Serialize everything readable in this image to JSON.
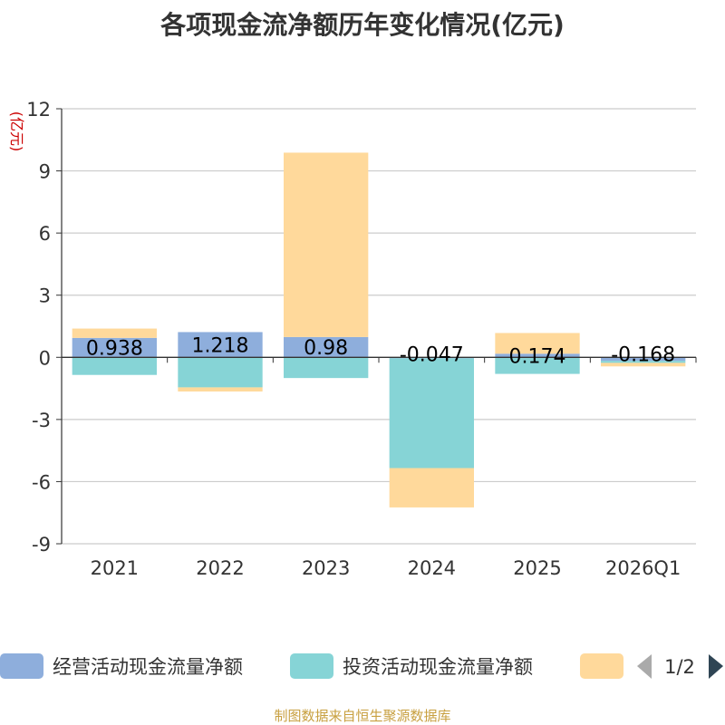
{
  "chart_data": {
    "type": "bar",
    "stacked": true,
    "title": "各项现金流净额历年变化情况(亿元)",
    "ylabel": "(亿元)",
    "xlabel": "",
    "ylim": [
      -9,
      12
    ],
    "yticks": [
      12,
      9,
      6,
      3,
      0,
      -3,
      -6,
      -9
    ],
    "grid": true,
    "categories": [
      "2021",
      "2022",
      "2023",
      "2024",
      "2025",
      "2026Q1"
    ],
    "series": [
      {
        "name": "经营活动现金流量净额",
        "color": "#8eaedc",
        "values": [
          0.938,
          1.218,
          0.98,
          -0.047,
          0.174,
          -0.168
        ],
        "labels": [
          "0.938",
          "1.218",
          "0.98",
          "-0.047",
          "0.174",
          "-0.168"
        ]
      },
      {
        "name": "投资活动现金流量净额",
        "color": "#86d4d6",
        "values": [
          -0.85,
          -1.45,
          -1.0,
          -5.3,
          -0.8,
          -0.1
        ]
      },
      {
        "name": "",
        "color": "#ffd99b",
        "values": [
          0.45,
          -0.2,
          8.9,
          -1.9,
          1.0,
          -0.17
        ]
      }
    ]
  },
  "legend": {
    "page": "1/2"
  },
  "footer": {
    "source": "制图数据来自恒生聚源数据库"
  }
}
